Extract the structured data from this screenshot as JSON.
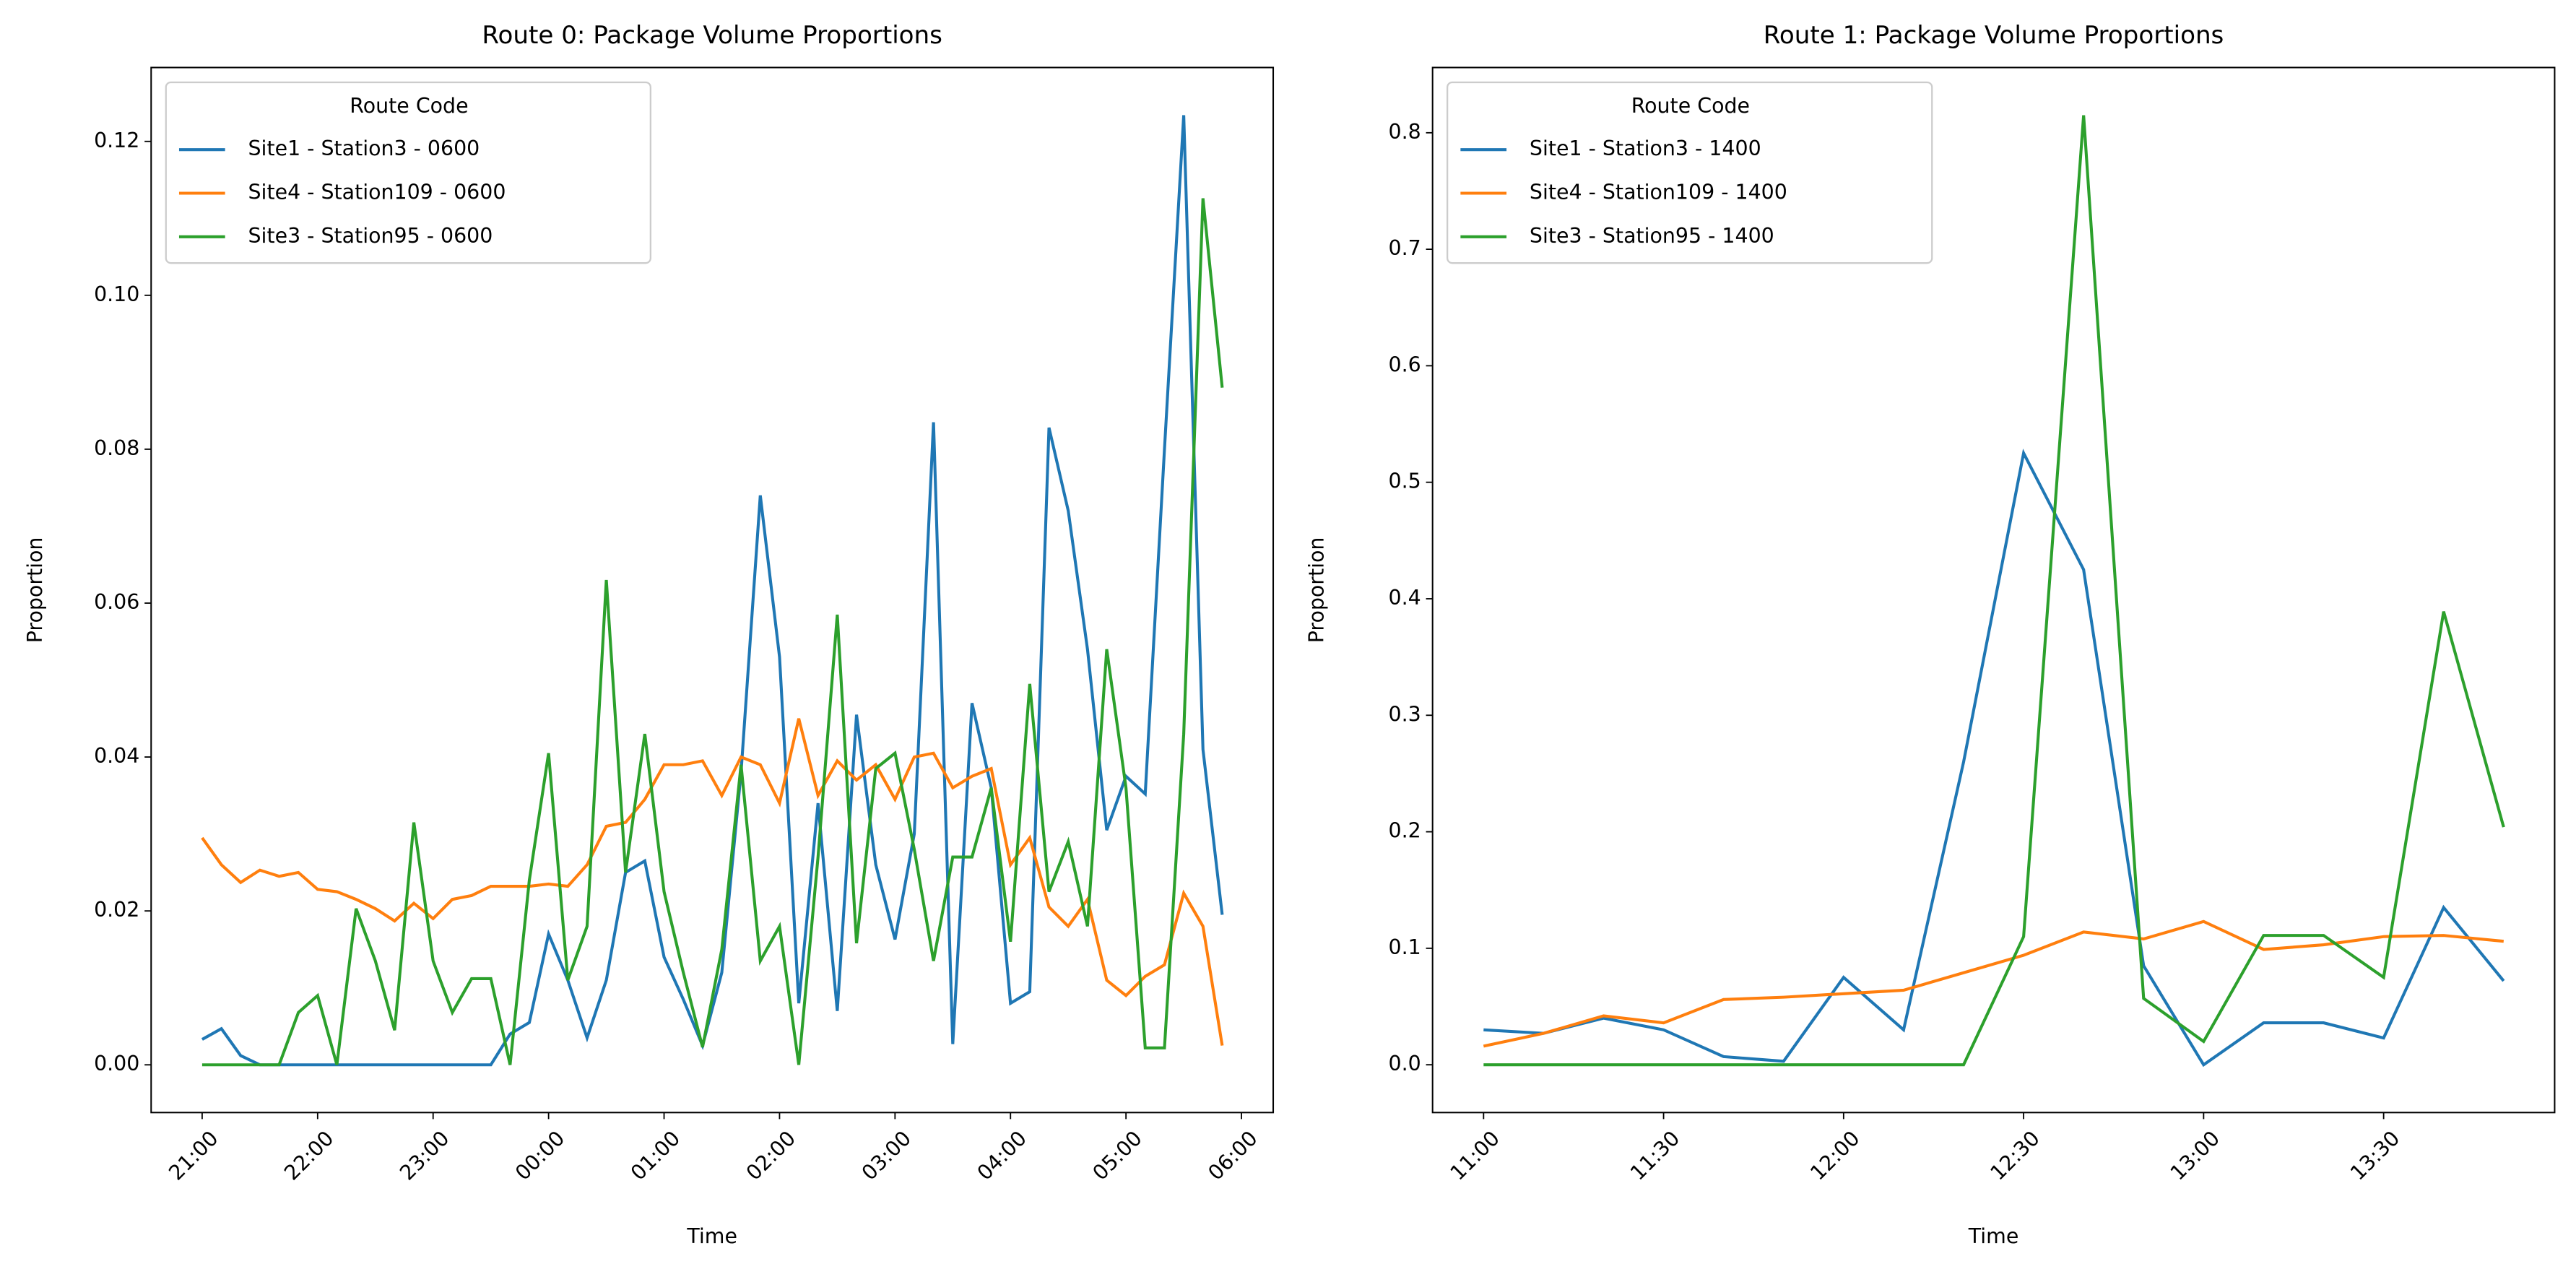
{
  "chart_data": [
    {
      "type": "line",
      "title": "Route 0: Package Volume Proportions",
      "xlabel": "Time",
      "ylabel": "Proportion",
      "legend_title": "Route Code",
      "categories": [
        "21:00",
        "21:10",
        "21:20",
        "21:30",
        "21:40",
        "21:50",
        "22:00",
        "22:10",
        "22:20",
        "22:30",
        "22:40",
        "22:50",
        "23:00",
        "23:10",
        "23:20",
        "23:30",
        "23:40",
        "23:50",
        "00:00",
        "00:10",
        "00:20",
        "00:30",
        "00:40",
        "00:50",
        "01:00",
        "01:10",
        "01:20",
        "01:30",
        "01:40",
        "01:50",
        "02:00",
        "02:10",
        "02:20",
        "02:30",
        "02:40",
        "02:50",
        "03:00",
        "03:10",
        "03:20",
        "03:30",
        "03:40",
        "03:50",
        "04:00",
        "04:10",
        "04:20",
        "04:30",
        "04:40",
        "04:50",
        "05:00",
        "05:10",
        "05:20",
        "05:30",
        "05:40",
        "05:50"
      ],
      "xticks": [
        "21:00",
        "22:00",
        "23:00",
        "00:00",
        "01:00",
        "02:00",
        "03:00",
        "04:00",
        "05:00",
        "06:00"
      ],
      "ylim": [
        -0.0062,
        0.1296
      ],
      "yticks": [
        {
          "value": 0,
          "label": "0.00"
        },
        0.02,
        0.04,
        0.06,
        0.08,
        {
          "value": 0.1,
          "label": "0.10"
        },
        0.12
      ],
      "series": [
        {
          "name": "Site1 - Station3 - 0600",
          "color": "#1f77b4",
          "values": [
            0.0033,
            0.0047,
            0.0012,
            0,
            0,
            0,
            0,
            0,
            0,
            0,
            0,
            0,
            0,
            0,
            0,
            0,
            0.004,
            0.0055,
            0.017,
            0.011,
            0.0035,
            0.011,
            0.025,
            0.0265,
            0.014,
            0.0085,
            0.0025,
            0.012,
            0.038,
            0.074,
            0.053,
            0.008,
            0.034,
            0.007,
            0.0455,
            0.026,
            0.0163,
            0.03,
            0.0835,
            0.0027,
            0.047,
            0.036,
            0.008,
            0.0095,
            0.0828,
            0.072,
            0.054,
            0.0305,
            0.0375,
            0.0352,
            0.08,
            0.1234,
            0.041,
            0.0195
          ]
        },
        {
          "name": "Site4 - Station109 - 0600",
          "color": "#ff7f0e",
          "values": [
            0.0295,
            0.026,
            0.0237,
            0.0253,
            0.0245,
            0.025,
            0.0228,
            0.0225,
            0.0215,
            0.0203,
            0.0187,
            0.021,
            0.019,
            0.0215,
            0.022,
            0.0232,
            0.0232,
            0.0232,
            0.0235,
            0.0232,
            0.026,
            0.031,
            0.0315,
            0.0345,
            0.039,
            0.039,
            0.0395,
            0.035,
            0.04,
            0.039,
            0.034,
            0.045,
            0.035,
            0.0395,
            0.037,
            0.039,
            0.0345,
            0.04,
            0.0405,
            0.036,
            0.0375,
            0.0385,
            0.026,
            0.0295,
            0.0205,
            0.018,
            0.0215,
            0.011,
            0.009,
            0.0115,
            0.013,
            0.0223,
            0.018,
            0.0025
          ]
        },
        {
          "name": "Site3 - Station95 - 0600",
          "color": "#2ca02c",
          "values": [
            0,
            0,
            0,
            0,
            0,
            0.0068,
            0.009,
            0,
            0.0203,
            0.0135,
            0.0045,
            0.0315,
            0.0135,
            0.0068,
            0.0112,
            0.0112,
            0,
            0.024,
            0.0405,
            0.011,
            0.018,
            0.063,
            0.025,
            0.043,
            0.0225,
            0.012,
            0.0023,
            0.015,
            0.039,
            0.0135,
            0.018,
            0,
            0.027,
            0.0585,
            0.0158,
            0.0385,
            0.0405,
            0.028,
            0.0135,
            0.027,
            0.027,
            0.036,
            0.016,
            0.0495,
            0.0225,
            0.029,
            0.018,
            0.054,
            0.036,
            0.0022,
            0.0022,
            0.043,
            0.1126,
            0.088
          ]
        }
      ]
    },
    {
      "type": "line",
      "title": "Route 1: Package Volume Proportions",
      "xlabel": "Time",
      "ylabel": "Proportion",
      "legend_title": "Route Code",
      "categories": [
        "11:00",
        "11:10",
        "11:20",
        "11:30",
        "11:40",
        "11:50",
        "12:00",
        "12:10",
        "12:20",
        "12:30",
        "12:40",
        "12:50",
        "13:00",
        "13:10",
        "13:20",
        "13:30",
        "13:40",
        "13:50"
      ],
      "xticks": [
        "11:00",
        "11:30",
        "12:00",
        "12:30",
        "13:00",
        "13:30"
      ],
      "ylim": [
        -0.041,
        0.856
      ],
      "yticks": [
        {
          "value": 0,
          "label": "0.0"
        },
        0.1,
        0.2,
        0.3,
        0.4,
        0.5,
        0.6,
        0.7,
        0.8
      ],
      "series": [
        {
          "name": "Site1 - Station3 - 1400",
          "color": "#1f77b4",
          "values": [
            0.03,
            0.027,
            0.04,
            0.03,
            0.007,
            0.003,
            0.075,
            0.03,
            0.26,
            0.525,
            0.425,
            0.085,
            0,
            0.036,
            0.036,
            0.023,
            0.135,
            0.072
          ]
        },
        {
          "name": "Site4 - Station109 - 1400",
          "color": "#ff7f0e",
          "values": [
            0.016,
            0.027,
            0.042,
            0.036,
            0.056,
            0.058,
            0.061,
            0.064,
            0.079,
            0.094,
            0.114,
            0.108,
            0.123,
            0.099,
            0.103,
            0.11,
            0.111,
            0.106
          ]
        },
        {
          "name": "Site3 - Station95 - 1400",
          "color": "#2ca02c",
          "values": [
            0,
            0,
            0,
            0,
            0,
            0,
            0,
            0,
            0,
            0.11,
            0.815,
            0.057,
            0.02,
            0.111,
            0.111,
            0.075,
            0.389,
            0.204
          ]
        }
      ]
    }
  ]
}
